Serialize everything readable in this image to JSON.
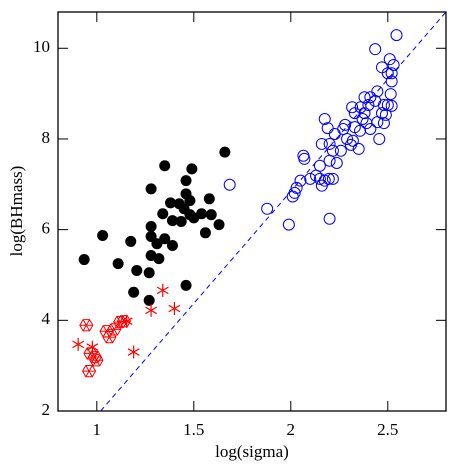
{
  "chart_data": {
    "type": "scatter",
    "xlabel": "log(sigma)",
    "ylabel": "log(BHmass)",
    "xlim": [
      0.8,
      2.8
    ],
    "ylim": [
      2,
      10.8
    ],
    "xticks": [
      1,
      1.5,
      2,
      2.5
    ],
    "yticks": [
      2,
      4,
      6,
      8,
      10
    ],
    "series": [
      {
        "color": "#000000",
        "marker": "filled-circle",
        "x": [
          0.935,
          1.03,
          1.11,
          1.175,
          1.206,
          1.19,
          1.27,
          1.28,
          1.28,
          1.28,
          1.28,
          1.27,
          1.32,
          1.31,
          1.35,
          1.34,
          1.35,
          1.39,
          1.39,
          1.38,
          1.425,
          1.435,
          1.45,
          1.46,
          1.46,
          1.46,
          1.48,
          1.48,
          1.5,
          1.49,
          1.54,
          1.56,
          1.58,
          1.59,
          1.63,
          1.66
        ],
        "y": [
          5.34,
          5.87,
          5.25,
          5.74,
          5.1,
          4.62,
          5.05,
          5.43,
          5.85,
          6.07,
          6.9,
          4.44,
          5.36,
          5.69,
          5.8,
          6.35,
          7.41,
          5.65,
          6.2,
          6.59,
          6.57,
          6.18,
          6.46,
          6.79,
          7.08,
          4.77,
          6.33,
          6.64,
          6.26,
          7.34,
          6.35,
          5.93,
          6.68,
          6.33,
          6.11,
          7.71
        ]
      },
      {
        "color": "#ff0000",
        "marker": "hexagon",
        "x": [
          0.946,
          1.05,
          1.065,
          1.09,
          1.12,
          1.14,
          0.967,
          0.99,
          0.998,
          0.96
        ],
        "y": [
          3.89,
          3.76,
          3.63,
          3.8,
          3.96,
          3.98,
          3.27,
          3.19,
          3.12,
          2.88
        ]
      },
      {
        "color": "#ff0000",
        "marker": "asterisk",
        "x": [
          0.904,
          0.977,
          1.154,
          1.19,
          1.28,
          1.34,
          1.4
        ],
        "y": [
          3.47,
          3.41,
          3.98,
          3.3,
          4.22,
          4.66,
          4.26
        ]
      },
      {
        "color": "#0000ff",
        "marker": "open-circle",
        "x": [
          1.685,
          1.878,
          1.99,
          2.01,
          2.03,
          2.05,
          2.065,
          2.07,
          2.02,
          2.1,
          2.13,
          2.15,
          2.15,
          2.16,
          2.175,
          2.196,
          2.2,
          2.2,
          2.217,
          2.16,
          2.175,
          2.19,
          2.2,
          2.217,
          2.227,
          2.237,
          2.258,
          2.27,
          2.28,
          2.29,
          2.31,
          2.32,
          2.33,
          2.33,
          2.35,
          2.357,
          2.36,
          2.37,
          2.38,
          2.39,
          2.4,
          2.41,
          2.41,
          2.435,
          2.446,
          2.446,
          2.456,
          2.47,
          2.48,
          2.5,
          2.515,
          2.52,
          2.435,
          2.47,
          2.5,
          2.51,
          2.52,
          2.53,
          2.545,
          2.48,
          2.49,
          2.52,
          2.38,
          2.316
        ],
        "y": [
          6.99,
          6.46,
          6.11,
          6.73,
          6.92,
          7.08,
          7.63,
          7.56,
          6.81,
          7.12,
          7.19,
          7.12,
          7.41,
          6.97,
          7.08,
          7.12,
          7.52,
          6.24,
          7.12,
          7.89,
          8.44,
          8.24,
          7.89,
          7.74,
          8.11,
          7.47,
          7.74,
          8.22,
          8.31,
          8.0,
          7.87,
          7.96,
          8.26,
          8.57,
          7.78,
          8.18,
          8.7,
          8.44,
          8.92,
          8.35,
          8.75,
          8.92,
          8.22,
          8.84,
          9.05,
          8.37,
          8.0,
          8.57,
          8.75,
          8.75,
          8.99,
          8.73,
          9.98,
          9.58,
          9.45,
          9.76,
          9.27,
          9.63,
          10.29,
          8.35,
          8.53,
          9.45,
          8.57,
          8.7
        ]
      }
    ],
    "line": {
      "color": "#0000ff",
      "dashed": true,
      "x": [
        1.02,
        2.8
      ],
      "y": [
        2,
        10.8
      ]
    }
  }
}
